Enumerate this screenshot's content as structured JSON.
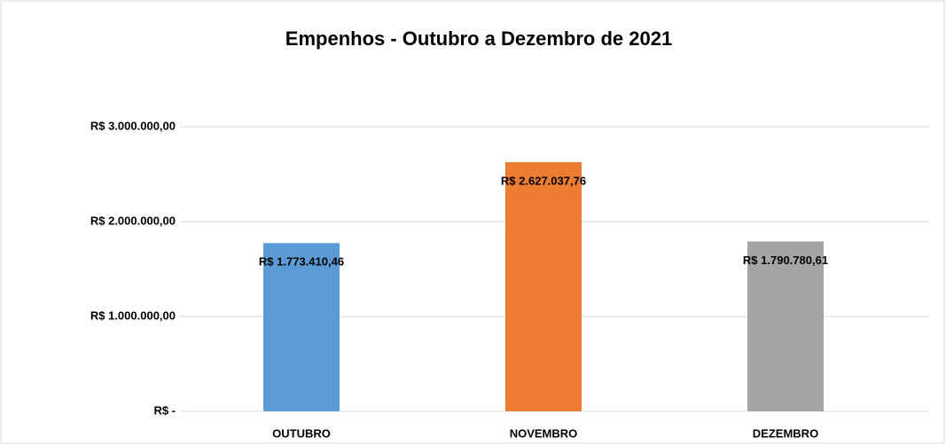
{
  "chart_data": {
    "type": "bar",
    "title": "Empenhos - Outubro a Dezembro de 2021",
    "categories": [
      "OUTUBRO",
      "NOVEMBRO",
      "DEZEMBRO"
    ],
    "values": [
      1773410.46,
      2627037.76,
      1790780.61
    ],
    "value_labels": [
      "R$ 1.773.410,46",
      "R$ 2.627.037,76",
      "R$ 1.790.780,61"
    ],
    "colors": [
      "#5b9bd5",
      "#ed7d31",
      "#a5a5a5"
    ],
    "ylim": [
      0,
      3000000
    ],
    "yticks": [
      {
        "value": 0,
        "label": "R$ -"
      },
      {
        "value": 1000000,
        "label": "R$ 1.000.000,00"
      },
      {
        "value": 2000000,
        "label": "R$ 2.000.000,00"
      },
      {
        "value": 3000000,
        "label": "R$ 3.000.000,00"
      }
    ],
    "grid": true
  }
}
